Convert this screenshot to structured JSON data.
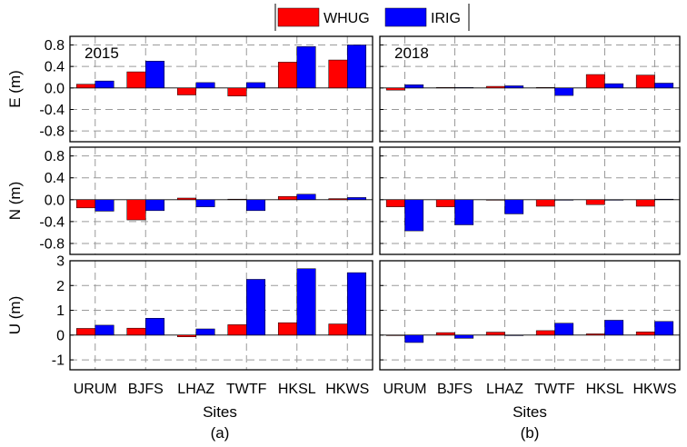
{
  "legend": {
    "entries": [
      {
        "name": "WHUG",
        "color": "#ff0000"
      },
      {
        "name": "IRIG",
        "color": "#0000ff"
      }
    ]
  },
  "colors": {
    "WHUG": "#ff0000",
    "IRIG": "#0000ff"
  },
  "chart_data": [
    {
      "type": "bar",
      "panel": "(a)",
      "year": "2015",
      "xlabel": "Sites",
      "categories": [
        "URUM",
        "BJFS",
        "LHAZ",
        "TWTF",
        "HKSL",
        "HKWS"
      ],
      "subplots": [
        {
          "component": "E",
          "ylabel": "E (m)",
          "ylim": [
            -1.0,
            0.96
          ],
          "yticks": [
            0.8,
            0.4,
            0.0,
            -0.4,
            -0.8
          ],
          "ytick_labels": [
            "0.8",
            "0.4",
            "0.0",
            "-0.4",
            "-0.8"
          ],
          "series": [
            {
              "name": "WHUG",
              "values": [
                0.07,
                0.3,
                -0.13,
                -0.15,
                0.48,
                0.52
              ]
            },
            {
              "name": "IRIG",
              "values": [
                0.13,
                0.5,
                0.1,
                0.1,
                0.77,
                0.8
              ]
            }
          ]
        },
        {
          "component": "N",
          "ylabel": "N (m)",
          "ylim": [
            -1.0,
            0.96
          ],
          "yticks": [
            0.8,
            0.4,
            0.0,
            -0.4,
            -0.8
          ],
          "ytick_labels": [
            "0.8",
            "0.4",
            "0.0",
            "-0.4",
            "-0.8"
          ],
          "series": [
            {
              "name": "WHUG",
              "values": [
                -0.15,
                -0.37,
                0.03,
                0.01,
                0.06,
                0.02
              ]
            },
            {
              "name": "IRIG",
              "values": [
                -0.21,
                -0.2,
                -0.13,
                -0.2,
                0.1,
                0.04
              ]
            }
          ]
        },
        {
          "component": "U",
          "ylabel": "U (m)",
          "ylim": [
            -1.4,
            3.0
          ],
          "yticks": [
            3,
            2,
            1,
            0,
            -1
          ],
          "ytick_labels": [
            "3",
            "2",
            "1",
            "0",
            "-1"
          ],
          "series": [
            {
              "name": "WHUG",
              "values": [
                0.27,
                0.28,
                -0.07,
                0.42,
                0.5,
                0.45
              ]
            },
            {
              "name": "IRIG",
              "values": [
                0.4,
                0.68,
                0.25,
                2.25,
                2.68,
                2.52
              ]
            }
          ]
        }
      ]
    },
    {
      "type": "bar",
      "panel": "(b)",
      "year": "2018",
      "xlabel": "Sites",
      "categories": [
        "URUM",
        "BJFS",
        "LHAZ",
        "TWTF",
        "HKSL",
        "HKWS"
      ],
      "subplots": [
        {
          "component": "E",
          "ylim": [
            -1.0,
            0.96
          ],
          "series": [
            {
              "name": "WHUG",
              "values": [
                -0.04,
                0.01,
                0.03,
                0.01,
                0.25,
                0.24
              ]
            },
            {
              "name": "IRIG",
              "values": [
                0.06,
                0.01,
                0.04,
                -0.14,
                0.08,
                0.09
              ]
            }
          ]
        },
        {
          "component": "N",
          "ylim": [
            -1.0,
            0.96
          ],
          "series": [
            {
              "name": "WHUG",
              "values": [
                -0.13,
                -0.13,
                0.0,
                -0.12,
                -0.09,
                -0.12
              ]
            },
            {
              "name": "IRIG",
              "values": [
                -0.57,
                -0.46,
                -0.26,
                0.0,
                0.0,
                0.01
              ]
            }
          ]
        },
        {
          "component": "U",
          "ylim": [
            -1.4,
            3.0
          ],
          "series": [
            {
              "name": "WHUG",
              "values": [
                -0.02,
                0.1,
                0.12,
                0.18,
                0.05,
                0.13
              ]
            },
            {
              "name": "IRIG",
              "values": [
                -0.3,
                -0.13,
                -0.02,
                0.48,
                0.6,
                0.55
              ]
            }
          ]
        }
      ]
    }
  ]
}
